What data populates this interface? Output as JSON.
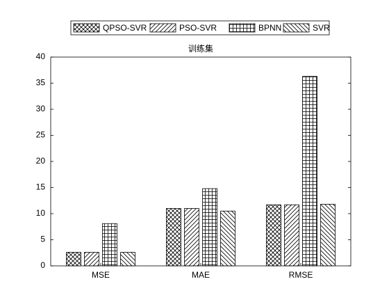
{
  "chart_data": {
    "type": "bar",
    "title": "训练集",
    "categories": [
      "MSE",
      "MAE",
      "RMSE"
    ],
    "series": [
      {
        "name": "QPSO-SVR",
        "color": "#000000",
        "hatch": "cross",
        "values": [
          2.6,
          11.0,
          11.7
        ]
      },
      {
        "name": "PSO-SVR",
        "color": "#000000",
        "hatch": "forward",
        "values": [
          2.6,
          11.0,
          11.7
        ]
      },
      {
        "name": "BPNN",
        "color": "#000000",
        "hatch": "grid",
        "values": [
          8.1,
          14.8,
          36.3
        ]
      },
      {
        "name": "SVR",
        "color": "#000000",
        "hatch": "backward",
        "values": [
          2.6,
          10.5,
          11.8
        ]
      }
    ],
    "ylim": [
      0,
      40
    ],
    "yticks": [
      0,
      5,
      10,
      15,
      20,
      25,
      30,
      35,
      40
    ],
    "grid": false,
    "legend": "top"
  }
}
